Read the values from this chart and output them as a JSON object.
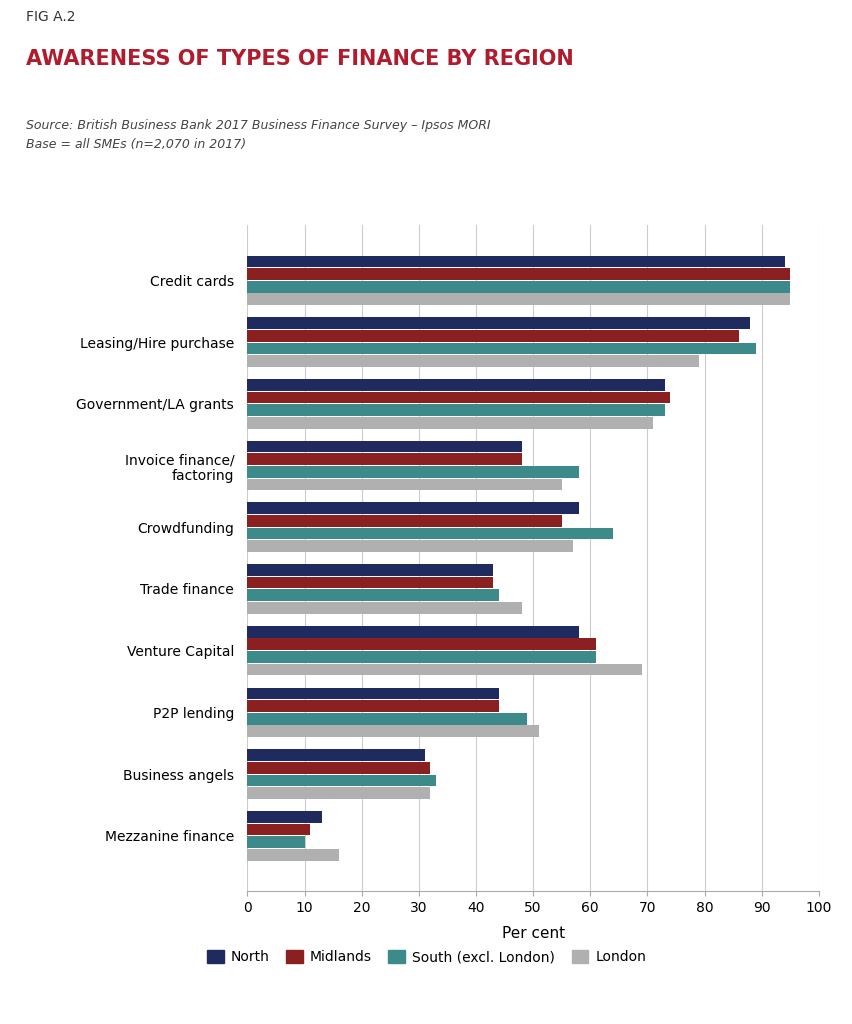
{
  "fig_label": "FIG A.2",
  "title": "AWARENESS OF TYPES OF FINANCE BY REGION",
  "source_line1": "Source: British Business Bank 2017 Business Finance Survey – Ipsos MORI",
  "source_line2": "Base = all SMEs (n=2,070 in 2017)",
  "categories": [
    "Credit cards",
    "Leasing/Hire purchase",
    "Government/LA grants",
    "Invoice finance/\nfactoring",
    "Crowdfunding",
    "Trade finance",
    "Venture Capital",
    "P2P lending",
    "Business angels",
    "Mezzanine finance"
  ],
  "series": {
    "North": [
      94,
      88,
      73,
      48,
      58,
      43,
      58,
      44,
      31,
      13
    ],
    "Midlands": [
      95,
      86,
      74,
      48,
      55,
      43,
      61,
      44,
      32,
      11
    ],
    "South (excl. London)": [
      95,
      89,
      73,
      58,
      64,
      44,
      61,
      49,
      33,
      10
    ],
    "London": [
      95,
      79,
      71,
      55,
      57,
      48,
      69,
      51,
      32,
      16
    ]
  },
  "colors": {
    "North": "#1f2b5e",
    "Midlands": "#8b2020",
    "South (excl. London)": "#3d8a8a",
    "London": "#b0b0b0"
  },
  "legend_order": [
    "North",
    "Midlands",
    "South (excl. London)",
    "London"
  ],
  "xlabel": "Per cent",
  "xlim": [
    0,
    100
  ],
  "xticks": [
    0,
    10,
    20,
    30,
    40,
    50,
    60,
    70,
    80,
    90,
    100
  ],
  "background_color": "#ffffff",
  "grid_color": "#cccccc",
  "title_color": "#b01c2e",
  "fig_label_color": "#333333",
  "source_color": "#444444",
  "bar_height": 0.19,
  "bar_gap": 0.015
}
